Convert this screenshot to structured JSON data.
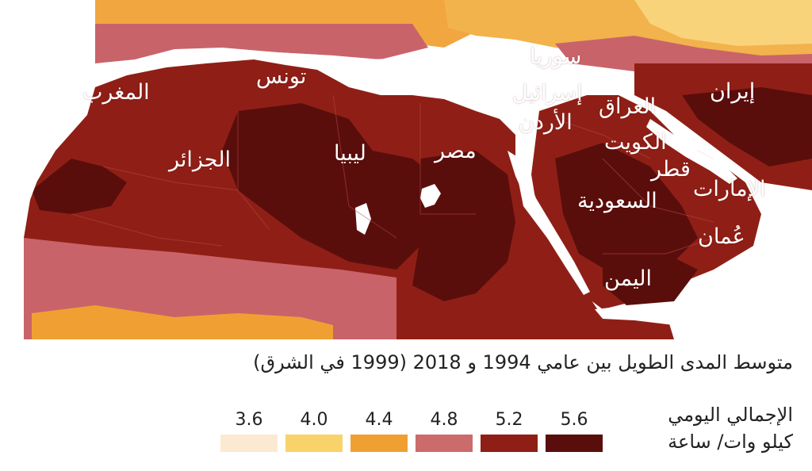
{
  "map": {
    "countries": [
      {
        "name": "المغرب"
      },
      {
        "name": "تونس"
      },
      {
        "name": "الجزائر"
      },
      {
        "name": "ليبيا"
      },
      {
        "name": "مصر"
      },
      {
        "name": "سوريا"
      },
      {
        "name": "إسرائيل"
      },
      {
        "name": "الأردن"
      },
      {
        "name": "العراق"
      },
      {
        "name": "إيران"
      },
      {
        "name": "الكويت"
      },
      {
        "name": "قطر"
      },
      {
        "name": "الإمارات"
      },
      {
        "name": "السعودية"
      },
      {
        "name": "عُمان"
      },
      {
        "name": "اليمن"
      }
    ]
  },
  "caption": "متوسط المدى الطويل بين عامي 1994 و 2018 (1999 في الشرق)",
  "legend": {
    "title_line1": "الإجمالي اليومي",
    "title_line2": "كيلو وات/ ساعة",
    "items": [
      {
        "value": "3.6",
        "color": "#fce9d2"
      },
      {
        "value": "4.0",
        "color": "#fad26b"
      },
      {
        "value": "4.4",
        "color": "#f0a033"
      },
      {
        "value": "4.8",
        "color": "#cc6b6b"
      },
      {
        "value": "5.2",
        "color": "#8f1f16"
      },
      {
        "value": "5.6",
        "color": "#5a0e0c"
      }
    ]
  }
}
